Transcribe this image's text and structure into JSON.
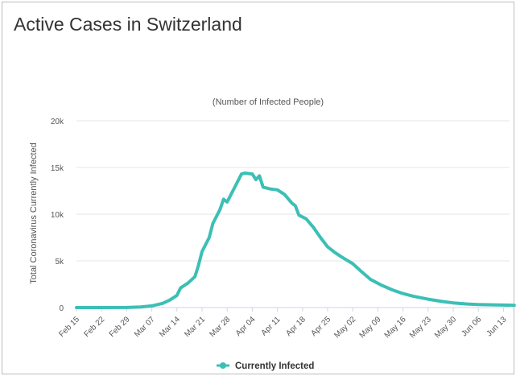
{
  "page": {
    "title": "Active Cases in Switzerland"
  },
  "chart_data": {
    "type": "line",
    "title": "Active Cases in Switzerland",
    "subtitle": "(Number of Infected People)",
    "xlabel": "",
    "ylabel": "Total Coronavirus Currently Infected",
    "y_ticks": [
      "0",
      "5k",
      "10k",
      "15k",
      "20k"
    ],
    "ylim": [
      0,
      20000
    ],
    "x_tick_labels": [
      "Feb 15",
      "Feb 22",
      "Feb 29",
      "Mar 07",
      "Mar 14",
      "Mar 21",
      "Mar 28",
      "Apr 04",
      "Apr 11",
      "Apr 18",
      "Apr 25",
      "May 02",
      "May 09",
      "May 16",
      "May 23",
      "May 30",
      "Jun 06",
      "Jun 13"
    ],
    "grid": true,
    "legend_position": "bottom-center",
    "colors": {
      "series": "#3cbfb5",
      "grid": "#e6e6e6",
      "axis": "#ccd6eb"
    },
    "series": [
      {
        "name": "Currently Infected",
        "points": [
          [
            "Feb 15",
            0
          ],
          [
            "Feb 22",
            0
          ],
          [
            "Feb 29",
            10
          ],
          [
            "Mar 04",
            60
          ],
          [
            "Mar 07",
            180
          ],
          [
            "Mar 10",
            450
          ],
          [
            "Mar 12",
            800
          ],
          [
            "Mar 14",
            1300
          ],
          [
            "Mar 15",
            2100
          ],
          [
            "Mar 17",
            2600
          ],
          [
            "Mar 19",
            3300
          ],
          [
            "Mar 20",
            4500
          ],
          [
            "Mar 21",
            6000
          ],
          [
            "Mar 23",
            7500
          ],
          [
            "Mar 24",
            9000
          ],
          [
            "Mar 26",
            10500
          ],
          [
            "Mar 27",
            11600
          ],
          [
            "Mar 28",
            11300
          ],
          [
            "Mar 30",
            12800
          ],
          [
            "Apr 01",
            14300
          ],
          [
            "Apr 02",
            14400
          ],
          [
            "Apr 04",
            14300
          ],
          [
            "Apr 05",
            13700
          ],
          [
            "Apr 06",
            14100
          ],
          [
            "Apr 07",
            12900
          ],
          [
            "Apr 09",
            12700
          ],
          [
            "Apr 11",
            12600
          ],
          [
            "Apr 13",
            12100
          ],
          [
            "Apr 15",
            11200
          ],
          [
            "Apr 16",
            10900
          ],
          [
            "Apr 17",
            9900
          ],
          [
            "Apr 19",
            9500
          ],
          [
            "Apr 21",
            8600
          ],
          [
            "Apr 23",
            7500
          ],
          [
            "Apr 25",
            6500
          ],
          [
            "Apr 27",
            5900
          ],
          [
            "Apr 29",
            5400
          ],
          [
            "May 02",
            4700
          ],
          [
            "May 04",
            4000
          ],
          [
            "May 07",
            3000
          ],
          [
            "May 10",
            2400
          ],
          [
            "May 13",
            1900
          ],
          [
            "May 16",
            1500
          ],
          [
            "May 19",
            1200
          ],
          [
            "May 23",
            900
          ],
          [
            "May 27",
            650
          ],
          [
            "May 30",
            500
          ],
          [
            "Jun 03",
            380
          ],
          [
            "Jun 06",
            320
          ],
          [
            "Jun 10",
            290
          ],
          [
            "Jun 13",
            270
          ],
          [
            "Jun 16",
            240
          ]
        ]
      }
    ]
  }
}
